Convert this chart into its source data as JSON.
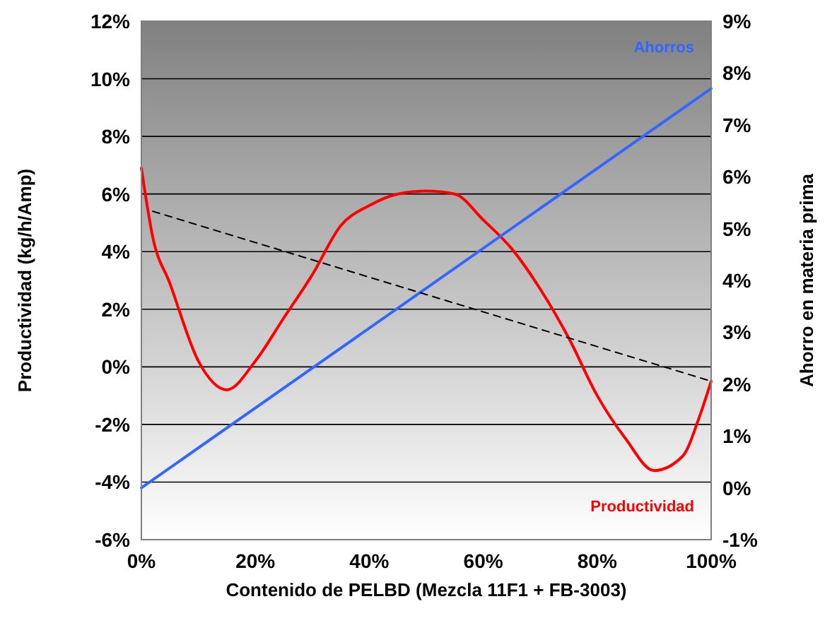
{
  "chart_data": {
    "type": "line",
    "xlabel": "Contenido de PELBD (Mezcla 11F1 + FB-3003)",
    "ylabel": "Productividad (kg/h/Amp)",
    "y2label": "Ahorro en materia prima",
    "xlim": [
      0,
      100
    ],
    "xticks": [
      {
        "value": 0,
        "label": "0%"
      },
      {
        "value": 20,
        "label": "20%"
      },
      {
        "value": 40,
        "label": "40%"
      },
      {
        "value": 60,
        "label": "60%"
      },
      {
        "value": 80,
        "label": "80%"
      },
      {
        "value": 100,
        "label": "100%"
      }
    ],
    "ylim": [
      -6,
      12
    ],
    "yticks": [
      {
        "value": -6,
        "label": "-6%"
      },
      {
        "value": -4,
        "label": "-4%"
      },
      {
        "value": -2,
        "label": "-2%"
      },
      {
        "value": 0,
        "label": "0%"
      },
      {
        "value": 2,
        "label": "2%"
      },
      {
        "value": 4,
        "label": "4%"
      },
      {
        "value": 6,
        "label": "6%"
      },
      {
        "value": 8,
        "label": "8%"
      },
      {
        "value": 10,
        "label": "10%"
      },
      {
        "value": 12,
        "label": "12%"
      }
    ],
    "y2lim": [
      -1,
      9
    ],
    "y2ticks": [
      {
        "value": -1,
        "label": "-1%"
      },
      {
        "value": 0,
        "label": "0%"
      },
      {
        "value": 1,
        "label": "1%"
      },
      {
        "value": 2,
        "label": "2%"
      },
      {
        "value": 3,
        "label": "3%"
      },
      {
        "value": 4,
        "label": "4%"
      },
      {
        "value": 5,
        "label": "5%"
      },
      {
        "value": 6,
        "label": "6%"
      },
      {
        "value": 7,
        "label": "7%"
      },
      {
        "value": 8,
        "label": "8%"
      },
      {
        "value": 9,
        "label": "9%"
      }
    ],
    "grid": "y",
    "marker": "none",
    "series": [
      {
        "name": "Productividad",
        "color": "#ff0000",
        "axis": "y",
        "line_style": "solid",
        "x": [
          0,
          2,
          5,
          10,
          15,
          20,
          25,
          30,
          35,
          40,
          45,
          50,
          55,
          60,
          65,
          70,
          75,
          80,
          85,
          90,
          95,
          98,
          100
        ],
        "values": [
          6.9,
          4.5,
          2.9,
          0.2,
          -0.8,
          0.2,
          1.7,
          3.2,
          4.9,
          5.6,
          6.0,
          6.1,
          6.0,
          5.1,
          4.1,
          2.7,
          1.0,
          -1.0,
          -2.5,
          -3.6,
          -3.1,
          -1.7,
          -0.5
        ]
      },
      {
        "name": "Ahorros",
        "color": "#3366ff",
        "axis": "y2",
        "line_style": "solid",
        "x": [
          0,
          100
        ],
        "values": [
          0,
          7.7
        ]
      },
      {
        "color": "#000000",
        "axis": "y",
        "line_style": "dashed",
        "x": [
          2,
          100
        ],
        "values": [
          5.4,
          -0.5
        ]
      }
    ]
  }
}
